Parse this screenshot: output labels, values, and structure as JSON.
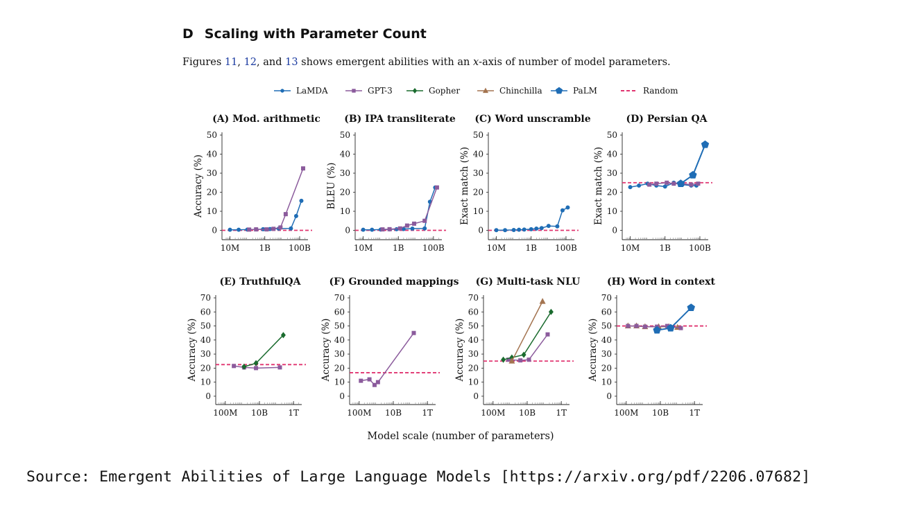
{
  "heading": {
    "letter": "D",
    "title": "Scaling with Parameter Count"
  },
  "caption": {
    "prefix": "Figures ",
    "ref1": "11",
    "sep1": ", ",
    "ref2": "12",
    "sep2": ", and ",
    "ref3": "13",
    "mid": " shows emergent abilities with an ",
    "math": "x",
    "suffix": "-axis of number of model parameters."
  },
  "source": "Source: Emergent Abilities of Large Language Models [https://arxiv.org/pdf/2206.07682]",
  "colors": {
    "LaMDA": "#1f6db5",
    "GPT-3": "#8b5b9c",
    "Gopher": "#1a6b2e",
    "Chinchilla": "#a47450",
    "PaLM": "#1f6db5",
    "Random": "#e0336f"
  },
  "chart_data": {
    "xlabel": "Model scale (number of parameters)",
    "legend": [
      {
        "name": "LaMDA",
        "marker": "circle"
      },
      {
        "name": "GPT-3",
        "marker": "square"
      },
      {
        "name": "Gopher",
        "marker": "diamond"
      },
      {
        "name": "Chinchilla",
        "marker": "triangle"
      },
      {
        "name": "PaLM",
        "marker": "pentagon"
      },
      {
        "name": "Random",
        "marker": "dashed"
      }
    ],
    "panels": [
      {
        "type": "line",
        "title": "(A) Mod. arithmetic",
        "ylabel": "Accuracy (%)",
        "xlim": [
          6.7,
          11.4
        ],
        "ylim": [
          -2,
          50
        ],
        "yticks": [
          0,
          10,
          20,
          30,
          40,
          50
        ],
        "xticks": [
          {
            "v": 7,
            "label": "10M"
          },
          {
            "v": 9,
            "label": "1B"
          },
          {
            "v": 11,
            "label": "100B"
          }
        ],
        "random": 0,
        "series": [
          {
            "name": "LaMDA",
            "points": [
              [
                7.0,
                0.3
              ],
              [
                7.5,
                0.3
              ],
              [
                8.0,
                0.4
              ],
              [
                8.5,
                0.5
              ],
              [
                8.9,
                0.6
              ],
              [
                9.3,
                0.7
              ],
              [
                9.8,
                0.9
              ],
              [
                10.5,
                1.0
              ],
              [
                10.8,
                7.5
              ],
              [
                11.1,
                15.5
              ]
            ]
          },
          {
            "name": "GPT-3",
            "points": [
              [
                8.1,
                0.4
              ],
              [
                8.5,
                0.5
              ],
              [
                9.1,
                0.5
              ],
              [
                9.5,
                0.8
              ],
              [
                9.9,
                1.5
              ],
              [
                10.2,
                8.5
              ],
              [
                11.2,
                32.5
              ]
            ]
          }
        ]
      },
      {
        "type": "line",
        "title": "(B) IPA transliterate",
        "ylabel": "BLEU (%)",
        "xlim": [
          6.7,
          11.4
        ],
        "ylim": [
          -2,
          50
        ],
        "yticks": [
          0,
          10,
          20,
          30,
          40,
          50
        ],
        "xticks": [
          {
            "v": 7,
            "label": "10M"
          },
          {
            "v": 9,
            "label": "1B"
          },
          {
            "v": 11,
            "label": "100B"
          }
        ],
        "random": 0,
        "series": [
          {
            "name": "LaMDA",
            "points": [
              [
                7.0,
                0.3
              ],
              [
                7.5,
                0.3
              ],
              [
                8.0,
                0.4
              ],
              [
                8.5,
                0.5
              ],
              [
                8.9,
                0.6
              ],
              [
                9.3,
                0.7
              ],
              [
                9.8,
                0.9
              ],
              [
                10.5,
                1.0
              ],
              [
                10.8,
                15.0
              ],
              [
                11.1,
                22.5
              ]
            ]
          },
          {
            "name": "GPT-3",
            "points": [
              [
                8.1,
                0.5
              ],
              [
                8.5,
                0.6
              ],
              [
                9.1,
                1.0
              ],
              [
                9.5,
                2.5
              ],
              [
                9.9,
                3.5
              ],
              [
                10.5,
                5.0
              ],
              [
                11.2,
                22.5
              ]
            ]
          }
        ]
      },
      {
        "type": "line",
        "title": "(C) Word unscramble",
        "ylabel": "Exact match (%)",
        "xlim": [
          6.7,
          11.4
        ],
        "ylim": [
          -2,
          50
        ],
        "yticks": [
          0,
          10,
          20,
          30,
          40,
          50
        ],
        "xticks": [
          {
            "v": 7,
            "label": "10M"
          },
          {
            "v": 9,
            "label": "1B"
          },
          {
            "v": 11,
            "label": "100B"
          }
        ],
        "random": 0,
        "series": [
          {
            "name": "LaMDA",
            "points": [
              [
                7.0,
                0.1
              ],
              [
                7.5,
                0.1
              ],
              [
                8.0,
                0.2
              ],
              [
                8.3,
                0.3
              ],
              [
                8.6,
                0.4
              ],
              [
                9.0,
                0.6
              ],
              [
                9.3,
                0.9
              ],
              [
                9.6,
                1.2
              ],
              [
                10.0,
                2.3
              ],
              [
                10.5,
                2.1
              ],
              [
                10.8,
                10.5
              ],
              [
                11.1,
                12.0
              ]
            ]
          }
        ]
      },
      {
        "type": "line",
        "title": "(D) Persian QA",
        "ylabel": "Exact match (%)",
        "xlim": [
          6.7,
          11.4
        ],
        "ylim": [
          -2,
          50
        ],
        "yticks": [
          0,
          10,
          20,
          30,
          40,
          50
        ],
        "xticks": [
          {
            "v": 7,
            "label": "10M"
          },
          {
            "v": 9,
            "label": "1B"
          },
          {
            "v": 11,
            "label": "100B"
          }
        ],
        "random": 25,
        "series": [
          {
            "name": "LaMDA",
            "points": [
              [
                7.0,
                22.7
              ],
              [
                7.5,
                23.5
              ],
              [
                8.0,
                24.5
              ],
              [
                8.5,
                23.5
              ],
              [
                9.0,
                23.0
              ],
              [
                9.5,
                25.0
              ],
              [
                10.0,
                24.0
              ],
              [
                10.5,
                23.5
              ],
              [
                10.8,
                23.5
              ]
            ]
          },
          {
            "name": "GPT-3",
            "points": [
              [
                8.1,
                24.0
              ],
              [
                8.5,
                24.5
              ],
              [
                9.1,
                25.0
              ],
              [
                9.5,
                24.5
              ],
              [
                9.9,
                24.5
              ],
              [
                10.5,
                24.0
              ],
              [
                10.9,
                24.5
              ]
            ]
          },
          {
            "name": "PaLM",
            "points": [
              [
                9.9,
                24.5
              ],
              [
                10.6,
                29.0
              ],
              [
                11.3,
                45.0
              ]
            ]
          }
        ]
      },
      {
        "type": "line",
        "title": "(E) TruthfulQA",
        "ylabel": "Accuracy (%)",
        "xlim": [
          7.6,
          12.4
        ],
        "ylim": [
          -2,
          70
        ],
        "yticks": [
          0,
          10,
          20,
          30,
          40,
          50,
          60,
          70
        ],
        "xticks": [
          {
            "v": 8,
            "label": "100M"
          },
          {
            "v": 10,
            "label": "10B"
          },
          {
            "v": 12,
            "label": "1T"
          }
        ],
        "random": 22.5,
        "series": [
          {
            "name": "GPT-3",
            "points": [
              [
                8.5,
                21.5
              ],
              [
                9.1,
                20.5
              ],
              [
                9.8,
                20.0
              ],
              [
                11.2,
                20.5
              ]
            ]
          },
          {
            "name": "Gopher",
            "points": [
              [
                9.1,
                21.0
              ],
              [
                9.8,
                23.5
              ],
              [
                11.4,
                43.5
              ]
            ]
          }
        ]
      },
      {
        "type": "line",
        "title": "(F) Grounded mappings",
        "ylabel": "Accuracy (%)",
        "xlim": [
          7.6,
          12.4
        ],
        "ylim": [
          -2,
          70
        ],
        "yticks": [
          0,
          10,
          20,
          30,
          40,
          50,
          60,
          70
        ],
        "xticks": [
          {
            "v": 8,
            "label": "100M"
          },
          {
            "v": 10,
            "label": "10B"
          },
          {
            "v": 12,
            "label": "1T"
          }
        ],
        "random": 16.7,
        "series": [
          {
            "name": "GPT-3",
            "points": [
              [
                8.1,
                11.0
              ],
              [
                8.6,
                12.0
              ],
              [
                8.9,
                8.0
              ],
              [
                9.1,
                10.0
              ],
              [
                11.2,
                45.0
              ]
            ]
          }
        ]
      },
      {
        "type": "line",
        "title": "(G) Multi-task NLU",
        "ylabel": "Accuracy (%)",
        "xlim": [
          7.6,
          12.4
        ],
        "ylim": [
          -2,
          70
        ],
        "yticks": [
          0,
          10,
          20,
          30,
          40,
          50,
          60,
          70
        ],
        "xticks": [
          {
            "v": 8,
            "label": "100M"
          },
          {
            "v": 10,
            "label": "10B"
          },
          {
            "v": 12,
            "label": "1T"
          }
        ],
        "random": 25,
        "series": [
          {
            "name": "GPT-3",
            "points": [
              [
                8.9,
                26.0
              ],
              [
                9.6,
                25.5
              ],
              [
                10.1,
                26.0
              ],
              [
                11.2,
                44.0
              ]
            ]
          },
          {
            "name": "Gopher",
            "points": [
              [
                8.6,
                26.0
              ],
              [
                9.1,
                27.5
              ],
              [
                9.8,
                29.5
              ],
              [
                11.4,
                60.0
              ]
            ]
          },
          {
            "name": "Chinchilla",
            "points": [
              [
                9.1,
                25.0
              ],
              [
                10.9,
                67.5
              ]
            ]
          }
        ]
      },
      {
        "type": "line",
        "title": "(H) Word in context",
        "ylabel": "Accuracy (%)",
        "xlim": [
          7.6,
          12.4
        ],
        "ylim": [
          -2,
          70
        ],
        "yticks": [
          0,
          10,
          20,
          30,
          40,
          50,
          60,
          70
        ],
        "xticks": [
          {
            "v": 8,
            "label": "100M"
          },
          {
            "v": 10,
            "label": "10B"
          },
          {
            "v": 12,
            "label": "1T"
          }
        ],
        "random": 50,
        "series": [
          {
            "name": "Chinchilla",
            "points": [
              [
                8.1,
                50.0
              ],
              [
                8.6,
                50.0
              ],
              [
                9.1,
                49.5
              ],
              [
                9.9,
                49.5
              ],
              [
                10.5,
                49.5
              ],
              [
                11.0,
                49.0
              ]
            ]
          },
          {
            "name": "GPT-3",
            "points": [
              [
                8.1,
                50.0
              ],
              [
                8.6,
                50.0
              ],
              [
                9.1,
                49.5
              ],
              [
                9.8,
                49.5
              ],
              [
                10.4,
                50.0
              ],
              [
                11.2,
                48.5
              ]
            ]
          },
          {
            "name": "PaLM",
            "points": [
              [
                9.8,
                47.0
              ],
              [
                10.6,
                48.5
              ],
              [
                11.8,
                63.0
              ]
            ]
          }
        ]
      }
    ]
  }
}
